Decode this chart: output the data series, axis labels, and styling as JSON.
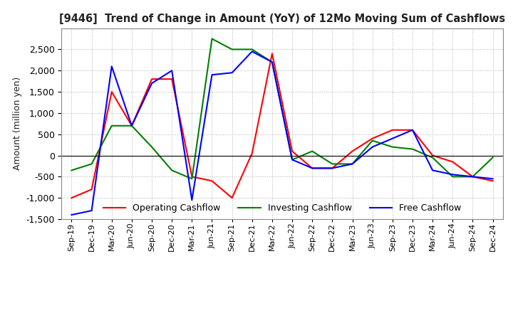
{
  "title": "[9446]  Trend of Change in Amount (YoY) of 12Mo Moving Sum of Cashflows",
  "ylabel": "Amount (million yen)",
  "ylim": [
    -1500,
    3000
  ],
  "yticks": [
    -1500,
    -1000,
    -500,
    0,
    500,
    1000,
    1500,
    2000,
    2500
  ],
  "dates": [
    "Sep-19",
    "Dec-19",
    "Mar-20",
    "Jun-20",
    "Sep-20",
    "Dec-20",
    "Mar-21",
    "Jun-21",
    "Sep-21",
    "Dec-21",
    "Mar-22",
    "Jun-22",
    "Sep-22",
    "Dec-22",
    "Mar-23",
    "Jun-23",
    "Sep-23",
    "Dec-23",
    "Mar-24",
    "Jun-24",
    "Sep-24",
    "Dec-24"
  ],
  "operating": [
    -1000,
    -800,
    1500,
    700,
    1800,
    1800,
    -500,
    -600,
    -1000,
    50,
    2400,
    100,
    -300,
    -300,
    100,
    400,
    600,
    600,
    0,
    -150,
    -500,
    -600
  ],
  "investing": [
    -350,
    -200,
    700,
    700,
    200,
    -350,
    -550,
    2750,
    2500,
    2500,
    2200,
    -100,
    100,
    -200,
    -200,
    350,
    200,
    150,
    -50,
    -500,
    -500,
    -50
  ],
  "free": [
    -1400,
    -1300,
    2100,
    700,
    1700,
    2000,
    -1050,
    1900,
    1950,
    2450,
    2200,
    -100,
    -300,
    -300,
    -200,
    200,
    400,
    600,
    -350,
    -450,
    -500,
    -550
  ],
  "operating_color": "#ff0000",
  "investing_color": "#008000",
  "free_color": "#0000ff",
  "background_color": "#ffffff",
  "grid_color": "#b0b0b0",
  "grid_style": ":"
}
